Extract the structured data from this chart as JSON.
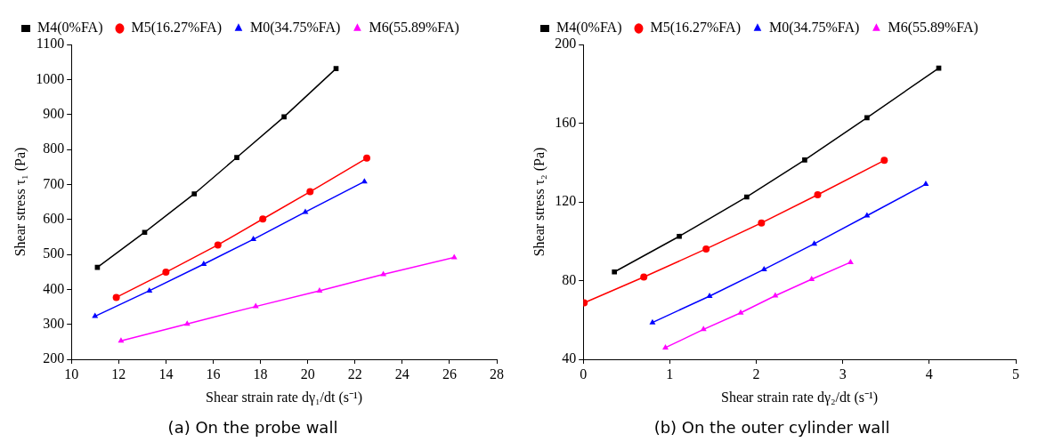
{
  "chart_data": [
    {
      "type": "line",
      "title": "(a) On the probe wall",
      "xlabel": "Shear strain rate dγ₁/dt (s⁻¹)",
      "ylabel": "Shear stress τ₁ (Pa)",
      "xlim": [
        10,
        28
      ],
      "xticks": [
        10,
        12,
        14,
        16,
        18,
        20,
        22,
        24,
        26,
        28
      ],
      "ylim": [
        200,
        1100
      ],
      "yticks": [
        200,
        300,
        400,
        500,
        600,
        700,
        800,
        900,
        1000,
        1100
      ],
      "grid": false,
      "legend": "top left",
      "line_style": "solid",
      "series": [
        {
          "name": "M4(0%FA)",
          "color": "#000000",
          "marker": "square",
          "x": [
            11.1,
            13.1,
            15.2,
            17.0,
            19.0,
            21.2
          ],
          "values": [
            463,
            563,
            673,
            777,
            893,
            1031
          ]
        },
        {
          "name": "M5(16.27%FA)",
          "color": "#ff0000",
          "marker": "circle",
          "x": [
            11.9,
            14.0,
            16.2,
            18.1,
            20.1,
            22.5
          ],
          "values": [
            377,
            449,
            527,
            601,
            679,
            775
          ]
        },
        {
          "name": "M0(34.75%FA)",
          "color": "#0000ff",
          "marker": "triangle",
          "x": [
            11.0,
            13.3,
            15.6,
            17.7,
            19.9,
            22.4
          ],
          "values": [
            323,
            396,
            472,
            543,
            621,
            708
          ]
        },
        {
          "name": "M6(55.89%FA)",
          "color": "#ff00ff",
          "marker": "triangle",
          "x": [
            12.1,
            14.9,
            17.8,
            20.5,
            23.2,
            26.2
          ],
          "values": [
            253,
            301,
            351,
            396,
            443,
            491
          ]
        }
      ]
    },
    {
      "type": "line",
      "title": "(b) On the outer cylinder wall",
      "xlabel": "Shear strain rate dγ₂/dt (s⁻¹)",
      "ylabel": "Shear stress τ₂ (Pa)",
      "xlim": [
        0,
        5
      ],
      "xticks": [
        0,
        1,
        2,
        3,
        4,
        5
      ],
      "ylim": [
        40,
        200
      ],
      "yticks": [
        40,
        80,
        120,
        160,
        200
      ],
      "grid": false,
      "legend": "top left",
      "line_style": "solid",
      "series": [
        {
          "name": "M4(0%FA)",
          "color": "#000000",
          "marker": "square",
          "x": [
            0.36,
            1.11,
            1.89,
            2.56,
            3.28,
            4.11
          ],
          "values": [
            84.4,
            102.5,
            122.5,
            141.3,
            162.8,
            188.0
          ]
        },
        {
          "name": "M5(16.27%FA)",
          "color": "#ff0000",
          "marker": "circle",
          "x": [
            0.01,
            0.7,
            1.42,
            2.06,
            2.71,
            3.48
          ],
          "values": [
            68.7,
            81.8,
            96.1,
            109.3,
            123.6,
            141.1
          ]
        },
        {
          "name": "M0(34.75%FA)",
          "color": "#0000ff",
          "marker": "triangle",
          "x": [
            0.8,
            1.46,
            2.09,
            2.67,
            3.28,
            3.96
          ],
          "values": [
            58.7,
            72.1,
            85.7,
            98.7,
            113.0,
            129.0
          ]
        },
        {
          "name": "M6(55.89%FA)",
          "color": "#ff00ff",
          "marker": "triangle",
          "x": [
            0.95,
            1.39,
            1.82,
            2.22,
            2.64,
            3.09
          ],
          "values": [
            45.9,
            55.2,
            63.6,
            72.3,
            80.7,
            89.3
          ]
        }
      ]
    }
  ]
}
